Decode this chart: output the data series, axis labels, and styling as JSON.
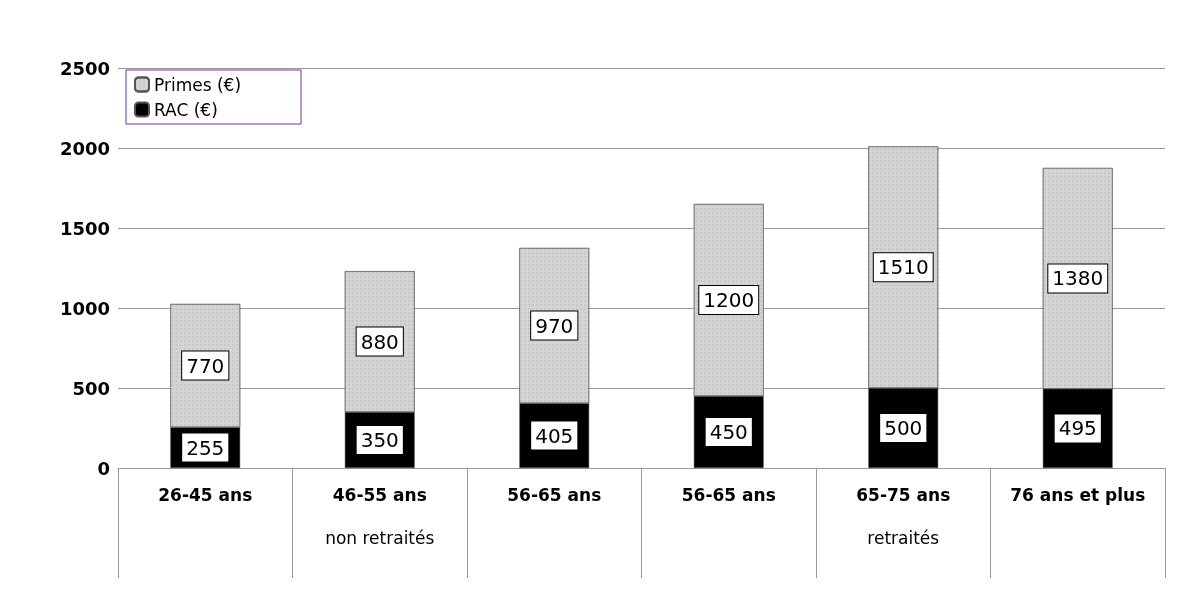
{
  "chart_data": {
    "type": "bar",
    "stacked": true,
    "categories": [
      "26-45 ans",
      "46-55 ans",
      "56-65 ans",
      "56-65 ans",
      "65-75 ans",
      "76 ans et plus"
    ],
    "series": [
      {
        "name": "RAC (€)",
        "color": "#000000",
        "values": [
          255,
          350,
          405,
          450,
          500,
          495
        ]
      },
      {
        "name": "Primes (€)",
        "color": "#d4d4d4",
        "values": [
          770,
          880,
          970,
          1200,
          1510,
          1380
        ]
      }
    ],
    "ylim": [
      0,
      2500
    ],
    "yticks": [
      0,
      500,
      1000,
      1500,
      2000,
      2500
    ],
    "grid": "y",
    "legend": "top left",
    "data_labels": true,
    "annotations": [
      "non retraités",
      "retraités"
    ]
  }
}
